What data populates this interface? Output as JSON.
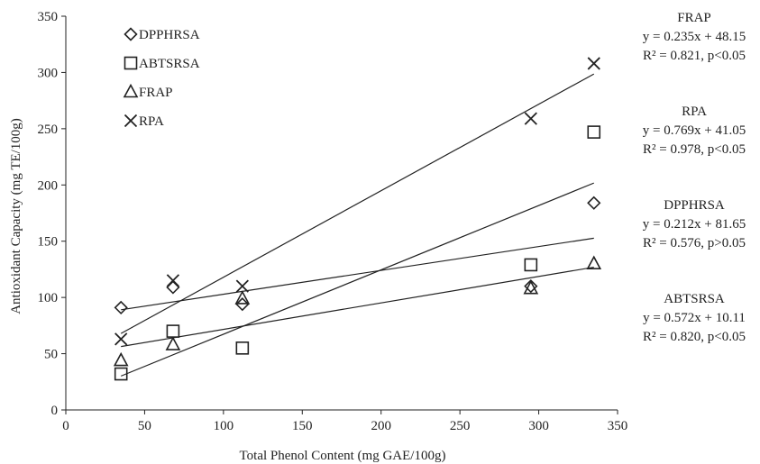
{
  "chart_data": {
    "type": "scatter",
    "xlabel": "Total Phenol Content (mg GAE/100g)",
    "ylabel": "Antioxidant Capacity (mg TE/100g)",
    "xlim": [
      0,
      350
    ],
    "ylim": [
      0,
      350
    ],
    "x_ticks": [
      0,
      50,
      100,
      150,
      200,
      250,
      300,
      350
    ],
    "y_ticks": [
      0,
      50,
      100,
      150,
      200,
      250,
      300,
      350
    ],
    "grid": false,
    "legend_position": "top-left",
    "series": [
      {
        "name": "DPPHRSA",
        "marker": "diamond",
        "points": [
          [
            35,
            91
          ],
          [
            68,
            109
          ],
          [
            112,
            94
          ],
          [
            295,
            110
          ],
          [
            335,
            184
          ]
        ],
        "trendline": {
          "slope": 0.212,
          "intercept": 81.65
        },
        "equation": "y = 0.212x + 81.65",
        "r2_text": "R² = 0.576, p>0.05"
      },
      {
        "name": "ABTSRSA",
        "marker": "square",
        "points": [
          [
            35,
            32
          ],
          [
            68,
            70
          ],
          [
            112,
            55
          ],
          [
            295,
            129
          ],
          [
            335,
            247
          ]
        ],
        "trendline": {
          "slope": 0.572,
          "intercept": 10.11
        },
        "equation": "y = 0.572x + 10.11",
        "r2_text": "R² = 0.820, p<0.05"
      },
      {
        "name": "FRAP",
        "marker": "triangle",
        "points": [
          [
            35,
            44
          ],
          [
            68,
            58
          ],
          [
            112,
            99
          ],
          [
            295,
            108
          ],
          [
            335,
            130
          ]
        ],
        "trendline": {
          "slope": 0.235,
          "intercept": 48.15
        },
        "equation": "y = 0.235x + 48.15",
        "r2_text": "R² = 0.821, p<0.05"
      },
      {
        "name": "RPA",
        "marker": "cross",
        "points": [
          [
            35,
            63
          ],
          [
            68,
            115
          ],
          [
            112,
            110
          ],
          [
            295,
            259
          ],
          [
            335,
            308
          ]
        ],
        "trendline": {
          "slope": 0.769,
          "intercept": 41.05
        },
        "equation": "y = 0.769x + 41.05",
        "r2_text": "R² = 0.978, p<0.05"
      }
    ],
    "annotation_order": [
      "FRAP",
      "RPA",
      "DPPHRSA",
      "ABTSRSA"
    ]
  }
}
